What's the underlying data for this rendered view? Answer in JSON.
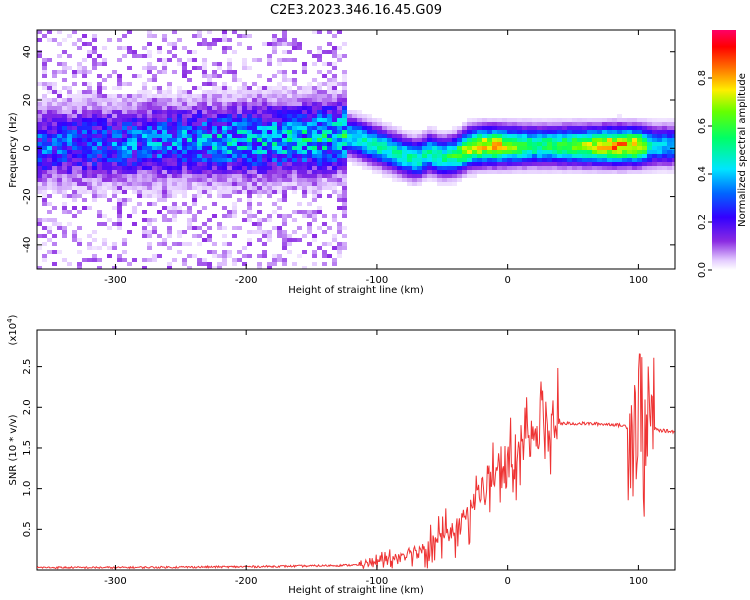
{
  "figure_title": "C2E3.2023.346.16.45.G09",
  "chart_data": [
    {
      "type": "heatmap",
      "title": "",
      "xlabel": "Height of straight line (km)",
      "ylabel": "Frequency (Hz)",
      "xlim": [
        -360,
        128
      ],
      "ylim": [
        -50,
        49
      ],
      "x_ticks": [
        -300,
        -200,
        -100,
        0,
        100
      ],
      "y_ticks": [
        -40,
        -20,
        0,
        20,
        40
      ],
      "x_tick_labels": [
        "-300",
        "-200",
        "-100",
        "0",
        "100"
      ],
      "y_tick_labels": [
        "-40",
        "-20",
        "0",
        "20",
        "40"
      ],
      "colorbar": {
        "label": "Normalized spectral amplitude",
        "range": [
          0,
          1
        ],
        "ticks": [
          0.0,
          0.2,
          0.4,
          0.6,
          0.8
        ],
        "tick_labels": [
          "0.0",
          "0.2",
          "0.4",
          "0.6",
          "0.8"
        ],
        "colormap": "purple-blue-cyan-green-yellow-red-magenta"
      },
      "ridge": {
        "x": [
          -360,
          -300,
          -250,
          -200,
          -150,
          -120,
          -100,
          -80,
          -70,
          -60,
          -50,
          -40,
          -30,
          -20,
          -10,
          0,
          20,
          40,
          60,
          80,
          100,
          110,
          128
        ],
        "frequency_hz": [
          1,
          2,
          3,
          3,
          4,
          5,
          1,
          -3,
          -5,
          -2,
          -4,
          -3,
          0,
          1,
          1,
          1,
          1,
          1,
          1,
          1,
          1,
          1,
          1
        ],
        "amplitude": [
          0.3,
          0.3,
          0.35,
          0.4,
          0.42,
          0.45,
          0.5,
          0.5,
          0.5,
          0.5,
          0.52,
          0.6,
          0.75,
          0.78,
          0.8,
          0.7,
          0.55,
          0.6,
          0.7,
          0.85,
          0.8,
          0.45,
          0.4
        ]
      }
    },
    {
      "type": "line",
      "title": "",
      "xlabel": "Height of straight line (km)",
      "ylabel": "SNR (10 * v/v)",
      "y_scale_label": "(x10",
      "y_scale_exponent": "4",
      "y_scale_suffix": ")",
      "xlim": [
        -360,
        128
      ],
      "ylim": [
        0,
        2.95
      ],
      "x_ticks": [
        -300,
        -200,
        -100,
        0,
        100
      ],
      "y_ticks": [
        0.5,
        1.0,
        1.5,
        2.0,
        2.5
      ],
      "x_tick_labels": [
        "-300",
        "-200",
        "-100",
        "0",
        "100"
      ],
      "y_tick_labels": [
        "0.5",
        "1.0",
        "1.5",
        "2.0",
        "2.5"
      ],
      "series": [
        {
          "name": "SNR",
          "color": "#ee3333",
          "x": [
            -360,
            -300,
            -250,
            -200,
            -150,
            -120,
            -110,
            -100,
            -80,
            -60,
            -40,
            -30,
            -20,
            -10,
            0,
            10,
            20,
            30,
            40,
            60,
            80,
            90,
            95,
            98,
            100,
            102,
            105,
            108,
            110,
            115,
            120,
            128
          ],
          "values": [
            0.03,
            0.03,
            0.035,
            0.04,
            0.05,
            0.06,
            0.07,
            0.1,
            0.2,
            0.3,
            0.5,
            0.7,
            1.0,
            1.15,
            1.3,
            1.45,
            1.6,
            1.73,
            1.8,
            1.8,
            1.79,
            1.77,
            1.7,
            1.9,
            1.75,
            2.3,
            1.2,
            2.1,
            1.75,
            1.72,
            1.71,
            1.7
          ]
        }
      ]
    }
  ],
  "colors": {
    "snr_line": "#ee3333",
    "axis": "#000000"
  }
}
